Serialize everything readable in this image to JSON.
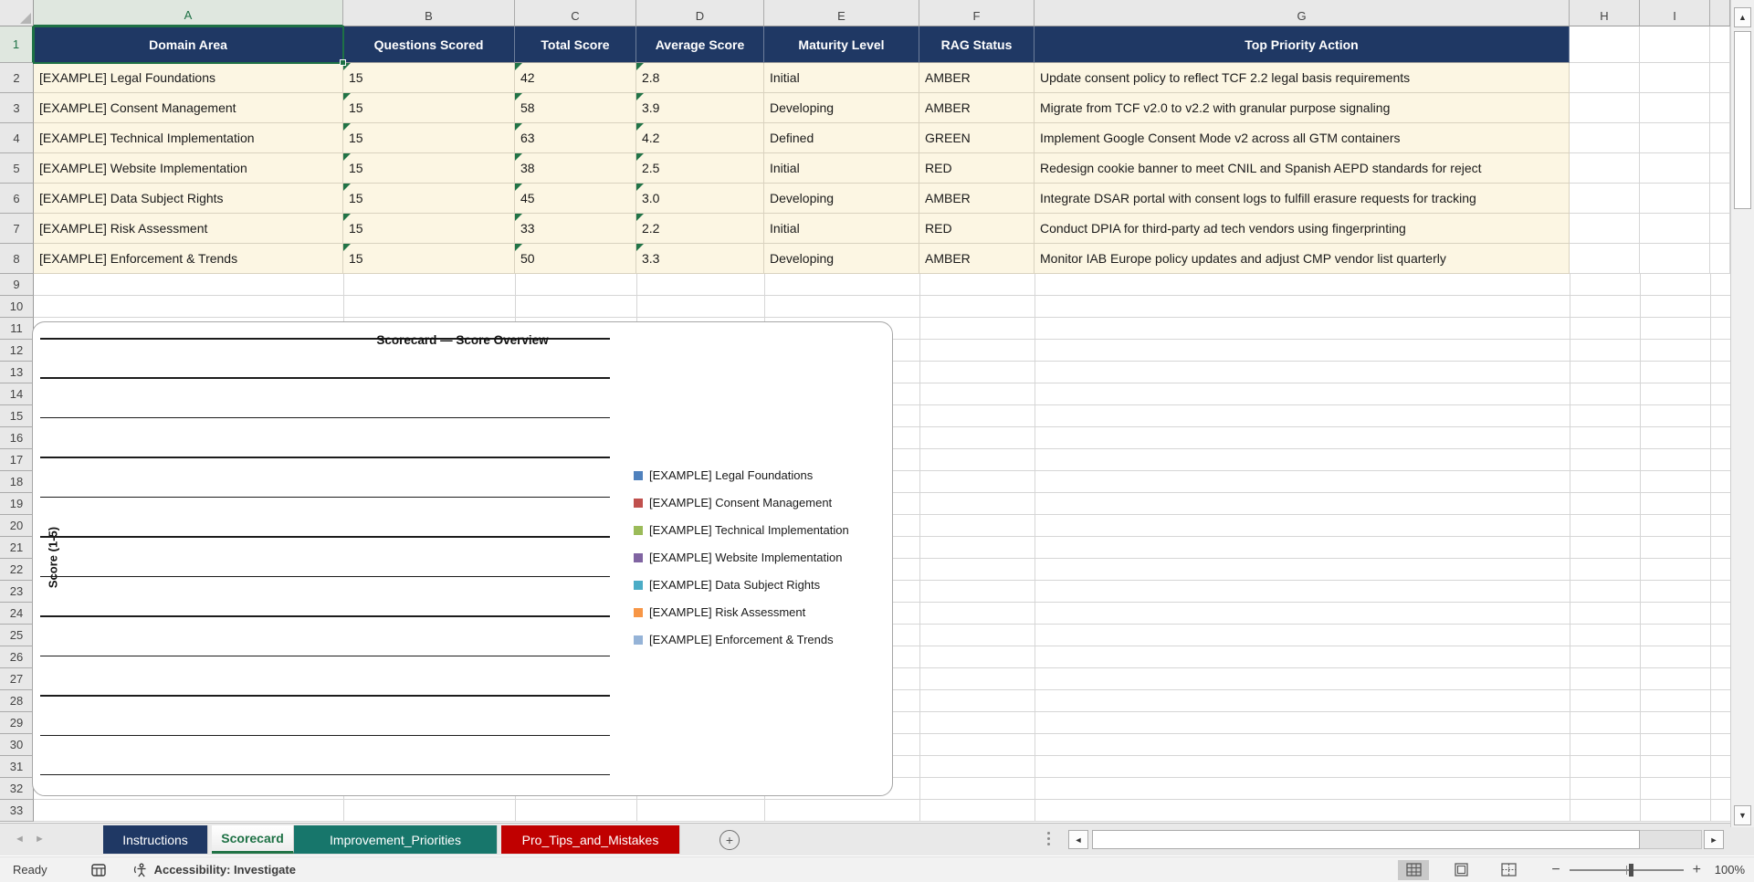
{
  "sheet": {
    "visible_columns": [
      "A",
      "B",
      "C",
      "D",
      "E",
      "F",
      "G",
      "H",
      "I"
    ],
    "visible_rows_count": 33,
    "active_cell": "A1"
  },
  "table": {
    "header_bg": "#1F3864",
    "row_bg": "#FCF6E3",
    "headers": [
      "Domain Area",
      "Questions Scored",
      "Total Score",
      "Average Score",
      "Maturity Level",
      "RAG Status",
      "Top Priority Action"
    ],
    "rows": [
      [
        "[EXAMPLE] Legal Foundations",
        "15",
        "42",
        "2.8",
        "Initial",
        "AMBER",
        "Update consent policy to reflect TCF 2.2 legal basis requirements"
      ],
      [
        "[EXAMPLE] Consent Management",
        "15",
        "58",
        "3.9",
        "Developing",
        "AMBER",
        "Migrate from TCF v2.0 to v2.2 with granular purpose signaling"
      ],
      [
        "[EXAMPLE] Technical Implementation",
        "15",
        "63",
        "4.2",
        "Defined",
        "GREEN",
        "Implement Google Consent Mode v2 across all GTM containers"
      ],
      [
        "[EXAMPLE] Website Implementation",
        "15",
        "38",
        "2.5",
        "Initial",
        "RED",
        "Redesign cookie banner to meet CNIL and Spanish AEPD standards for reject"
      ],
      [
        "[EXAMPLE] Data Subject Rights",
        "15",
        "45",
        "3.0",
        "Developing",
        "AMBER",
        "Integrate DSAR portal with consent logs to fulfill erasure requests for tracking"
      ],
      [
        "[EXAMPLE] Risk Assessment",
        "15",
        "33",
        "2.2",
        "Initial",
        "RED",
        "Conduct DPIA for third-party ad tech vendors using fingerprinting"
      ],
      [
        "[EXAMPLE] Enforcement & Trends",
        "15",
        "50",
        "3.3",
        "Developing",
        "AMBER",
        "Monitor IAB Europe policy updates and adjust CMP vendor list quarterly"
      ]
    ]
  },
  "chart_data": {
    "type": "bar",
    "title": "Scorecard — Score Overview",
    "ylabel": "Score (1-5)",
    "legend_position": "right",
    "gridlines": 12,
    "bars_visible": false,
    "series": [
      {
        "name": "[EXAMPLE] Legal Foundations",
        "color": "#4F81BD"
      },
      {
        "name": "[EXAMPLE] Consent Management",
        "color": "#C0504D"
      },
      {
        "name": "[EXAMPLE] Technical Implementation",
        "color": "#9BBB59"
      },
      {
        "name": "[EXAMPLE] Website Implementation",
        "color": "#8064A2"
      },
      {
        "name": "[EXAMPLE] Data Subject Rights",
        "color": "#4BACC6"
      },
      {
        "name": "[EXAMPLE] Risk Assessment",
        "color": "#F79646"
      },
      {
        "name": "[EXAMPLE] Enforcement & Trends",
        "color": "#95B3D7"
      }
    ]
  },
  "tabs": {
    "items": [
      {
        "label": "Instructions",
        "color": "#1F3864",
        "active": false
      },
      {
        "label": "Scorecard",
        "color": "#217346",
        "active": true
      },
      {
        "label": "Improvement_Priorities",
        "color": "#17766B",
        "active": false
      },
      {
        "label": "Pro_Tips_and_Mistakes",
        "color": "#C00000",
        "active": false
      }
    ],
    "add_sheet_label": "+"
  },
  "status_bar": {
    "ready": "Ready",
    "accessibility": "Accessibility: Investigate",
    "zoom_percent": "100%"
  }
}
